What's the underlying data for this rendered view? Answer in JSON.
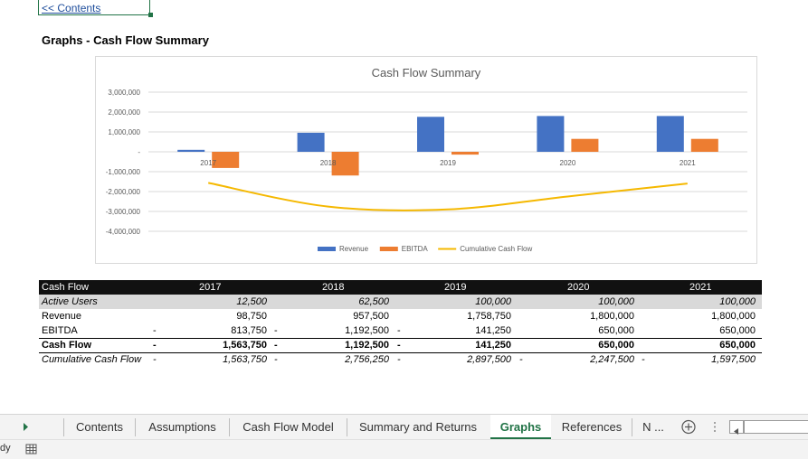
{
  "link": {
    "contents": "<< Contents"
  },
  "page_title": "Graphs - Cash Flow Summary",
  "chart_data": {
    "type": "bar",
    "title": "Cash Flow Summary",
    "categories": [
      "2017",
      "2018",
      "2019",
      "2020",
      "2021"
    ],
    "ylim": [
      -4000000,
      3000000
    ],
    "yticks": [
      "3,000,000",
      "2,000,000",
      "1,000,000",
      "-",
      "-1,000,000",
      "-2,000,000",
      "-3,000,000",
      "-4,000,000"
    ],
    "ytick_values": [
      3000000,
      2000000,
      1000000,
      0,
      -1000000,
      -2000000,
      -3000000,
      -4000000
    ],
    "series": [
      {
        "name": "Revenue",
        "kind": "bar",
        "color": "#4472c4",
        "values": [
          98750,
          957500,
          1758750,
          1800000,
          1800000
        ]
      },
      {
        "name": "EBITDA",
        "kind": "bar",
        "color": "#ed7d31",
        "values": [
          -813750,
          -1192500,
          -141250,
          650000,
          650000
        ]
      },
      {
        "name": "Cumulative Cash Flow",
        "kind": "line",
        "color": "#f5b800",
        "values": [
          -1563750,
          -2756250,
          -2897500,
          -2247500,
          -1597500
        ]
      }
    ],
    "legend": "bottom",
    "grid": true
  },
  "table": {
    "header": {
      "label": "Cash Flow",
      "years": [
        "2017",
        "2018",
        "2019",
        "2020",
        "2021"
      ]
    },
    "rows": [
      {
        "label": "Active Users",
        "values": [
          "12,500",
          "62,500",
          "100,000",
          "100,000",
          "100,000"
        ],
        "style": "italic"
      },
      {
        "label": "Revenue",
        "values": [
          "98,750",
          "957,500",
          "1,758,750",
          "1,800,000",
          "1,800,000"
        ],
        "style": "normal"
      },
      {
        "label": "EBITDA",
        "values": [
          "813,750",
          "1,192,500",
          "141,250",
          "650,000",
          "650,000"
        ],
        "style": "normal"
      },
      {
        "label": "Cash Flow",
        "values": [
          "1,563,750",
          "1,192,500",
          "141,250",
          "650,000",
          "650,000"
        ],
        "style": "bold"
      },
      {
        "label": "Cumulative Cash Flow",
        "values": [
          "1,563,750",
          "2,756,250",
          "2,897,500",
          "2,247,500",
          "1,597,500"
        ],
        "style": "italic"
      }
    ],
    "dash": "-"
  },
  "tabs": [
    "Contents",
    "Assumptions",
    "Cash Flow Model",
    "Summary and Returns",
    "Graphs",
    "References",
    "N ..."
  ],
  "active_tab": "Graphs",
  "status": {
    "text": "dy"
  },
  "icons": {
    "scroll_right": "triangle-right-icon",
    "add_sheet": "plus-circle-icon",
    "menu": "vertical-dots-icon",
    "scroll_left": "scroll-left-icon",
    "macro": "grid-icon"
  }
}
